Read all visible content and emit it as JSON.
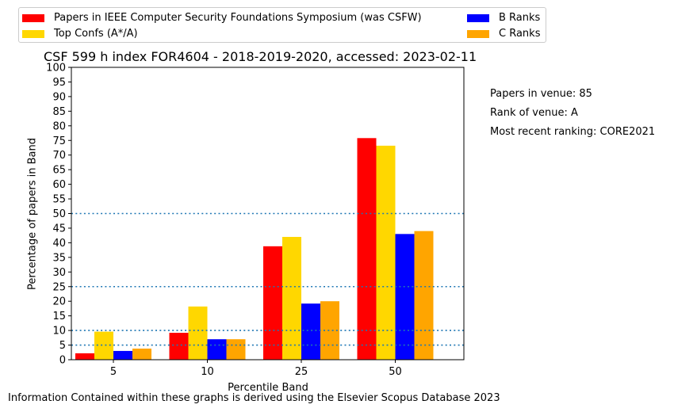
{
  "chart_data": {
    "type": "bar",
    "title": "CSF 599 h index FOR4604 - 2018-2019-2020, accessed: 2023-02-11",
    "xlabel": "Percentile Band",
    "ylabel": "Percentage of papers in Band",
    "categories": [
      "5",
      "10",
      "25",
      "50"
    ],
    "ylim": [
      0,
      100
    ],
    "yticks": [
      "0",
      "5",
      "10",
      "15",
      "20",
      "25",
      "30",
      "35",
      "40",
      "45",
      "50",
      "55",
      "60",
      "65",
      "70",
      "75",
      "80",
      "85",
      "90",
      "95",
      "100"
    ],
    "reference_lines": [
      5,
      10,
      25,
      50
    ],
    "series": [
      {
        "name": "Papers in IEEE Computer Security Foundations Symposium (was CSFW)",
        "color": "#ff0000",
        "values": [
          2.2,
          9.2,
          38.8,
          75.8
        ]
      },
      {
        "name": "Top Confs (A*/A)",
        "color": "#ffd700",
        "values": [
          9.6,
          18.2,
          42.0,
          73.2
        ]
      },
      {
        "name": "B Ranks",
        "color": "#0000ff",
        "values": [
          3.0,
          7.0,
          19.2,
          43.0
        ]
      },
      {
        "name": "C Ranks",
        "color": "#ffa500",
        "values": [
          3.8,
          7.0,
          20.0,
          44.0
        ]
      }
    ],
    "legend_position": "top"
  },
  "side_notes": {
    "papers": "Papers in venue: 85",
    "rank": "Rank of venue: A",
    "ranking": "Most recent ranking: CORE2021"
  },
  "footer": "Information Contained within these graphs is derived using the Elsevier Scopus Database 2023",
  "colors": {
    "reference_line": "#1f77b4"
  }
}
